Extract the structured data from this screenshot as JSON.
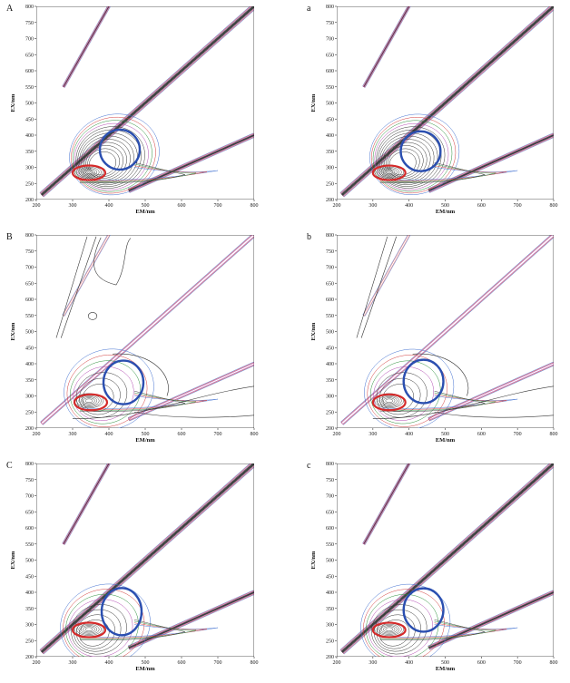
{
  "colors": {
    "frame": "#333333",
    "scatter": "#222222",
    "contour_dark": "#333333",
    "contour_blue": "#3f6fd0",
    "contour_red": "#d23a3a",
    "contour_green": "#2a8f3a",
    "contour_magenta": "#b04ab0",
    "circle_blue": "#2b4fb0",
    "circle_red": "#d42a2a"
  },
  "chart_data": [
    {
      "id": "A",
      "label": "A",
      "type": "heatmap",
      "xlabel": "EM/nm",
      "ylabel": "EX/nm",
      "xlim": [
        200,
        800
      ],
      "ylim": [
        200,
        800
      ],
      "xticks": [
        "200",
        "300",
        "400",
        "500",
        "600",
        "700",
        "800"
      ],
      "yticks": [
        "200",
        "250",
        "300",
        "350",
        "400",
        "450",
        "500",
        "550",
        "600",
        "650",
        "700",
        "750",
        "800"
      ],
      "scatter_intensity": "strong",
      "fluor_rings": 13,
      "fluor_center": [
        415,
        340
      ],
      "extra_contours": [],
      "circles": [
        {
          "color": "blue",
          "center": [
            430,
            355
          ],
          "r": [
            55,
            55
          ]
        },
        {
          "color": "red",
          "center": [
            345,
            283
          ],
          "r": [
            45,
            20
          ]
        }
      ]
    },
    {
      "id": "a",
      "label": "a",
      "type": "heatmap",
      "xlabel": "EM/nm",
      "ylabel": "EX/nm",
      "xlim": [
        200,
        800
      ],
      "ylim": [
        200,
        800
      ],
      "xticks": [
        "200",
        "300",
        "400",
        "500",
        "600",
        "700",
        "800"
      ],
      "yticks": [
        "200",
        "250",
        "300",
        "350",
        "400",
        "450",
        "500",
        "550",
        "600",
        "650",
        "700",
        "750",
        "800"
      ],
      "scatter_intensity": "strong",
      "fluor_rings": 13,
      "fluor_center": [
        415,
        340
      ],
      "extra_contours": [],
      "circles": [
        {
          "color": "blue",
          "center": [
            432,
            350
          ],
          "r": [
            55,
            55
          ]
        },
        {
          "color": "red",
          "center": [
            345,
            283
          ],
          "r": [
            45,
            20
          ]
        }
      ]
    },
    {
      "id": "B",
      "label": "B",
      "type": "heatmap",
      "xlabel": "EM/nm",
      "ylabel": "EX/nm",
      "xlim": [
        200,
        800
      ],
      "ylim": [
        200,
        800
      ],
      "xticks": [
        "200",
        "300",
        "400",
        "500",
        "600",
        "700",
        "800"
      ],
      "yticks": [
        "200",
        "250",
        "300",
        "350",
        "400",
        "450",
        "500",
        "550",
        "600",
        "650",
        "700",
        "750",
        "800"
      ],
      "scatter_intensity": "medium",
      "fluor_rings": 7,
      "fluor_center": [
        400,
        320
      ],
      "extra_contours": [
        "B"
      ],
      "circles": [
        {
          "color": "blue",
          "center": [
            440,
            342
          ],
          "r": [
            55,
            60
          ]
        },
        {
          "color": "red",
          "center": [
            350,
            280
          ],
          "r": [
            45,
            22
          ]
        }
      ]
    },
    {
      "id": "b",
      "label": "b",
      "type": "heatmap",
      "xlabel": "EM/nm",
      "ylabel": "EX/nm",
      "xlim": [
        200,
        800
      ],
      "ylim": [
        200,
        800
      ],
      "xticks": [
        "200",
        "300",
        "400",
        "500",
        "600",
        "700",
        "800"
      ],
      "yticks": [
        "200",
        "250",
        "300",
        "350",
        "400",
        "450",
        "500",
        "550",
        "600",
        "650",
        "700",
        "750",
        "800"
      ],
      "scatter_intensity": "medium",
      "fluor_rings": 7,
      "fluor_center": [
        400,
        320
      ],
      "extra_contours": [
        "b"
      ],
      "circles": [
        {
          "color": "blue",
          "center": [
            440,
            345
          ],
          "r": [
            55,
            60
          ]
        },
        {
          "color": "red",
          "center": [
            345,
            280
          ],
          "r": [
            45,
            22
          ]
        }
      ]
    },
    {
      "id": "C",
      "label": "C",
      "type": "heatmap",
      "xlabel": "EM/nm",
      "ylabel": "EX/nm",
      "xlim": [
        200,
        800
      ],
      "ylim": [
        200,
        800
      ],
      "xticks": [
        "200",
        "300",
        "400",
        "500",
        "600",
        "700",
        "800"
      ],
      "yticks": [
        "200",
        "250",
        "300",
        "350",
        "400",
        "450",
        "500",
        "550",
        "600",
        "650",
        "700",
        "750",
        "800"
      ],
      "scatter_intensity": "strong",
      "fluor_rings": 8,
      "fluor_center": [
        390,
        300
      ],
      "extra_contours": [],
      "circles": [
        {
          "color": "blue",
          "center": [
            435,
            340
          ],
          "r": [
            55,
            65
          ]
        },
        {
          "color": "red",
          "center": [
            345,
            283
          ],
          "r": [
            45,
            20
          ]
        }
      ]
    },
    {
      "id": "c",
      "label": "c",
      "type": "heatmap",
      "xlabel": "EM/nm",
      "ylabel": "EX/nm",
      "xlim": [
        200,
        800
      ],
      "ylim": [
        200,
        800
      ],
      "xticks": [
        "200",
        "300",
        "400",
        "500",
        "600",
        "700",
        "800"
      ],
      "yticks": [
        "200",
        "250",
        "300",
        "350",
        "400",
        "450",
        "500",
        "550",
        "600",
        "650",
        "700",
        "750",
        "800"
      ],
      "scatter_intensity": "strong",
      "fluor_rings": 8,
      "fluor_center": [
        390,
        300
      ],
      "extra_contours": [],
      "circles": [
        {
          "color": "blue",
          "center": [
            440,
            345
          ],
          "r": [
            55,
            60
          ]
        },
        {
          "color": "red",
          "center": [
            345,
            283
          ],
          "r": [
            45,
            20
          ]
        }
      ]
    }
  ]
}
